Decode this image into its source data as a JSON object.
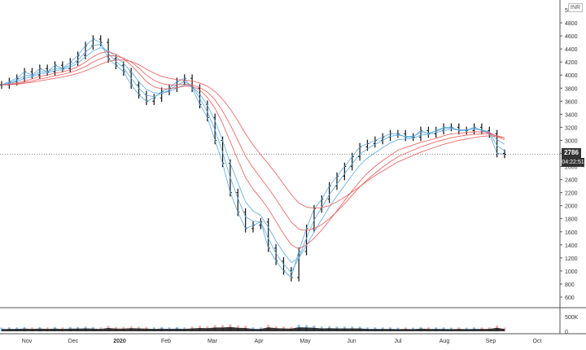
{
  "chart_data": {
    "type": "line",
    "title": "",
    "currency_label": "INR",
    "price_scale": {
      "ylim": [
        600,
        5000
      ],
      "ticks": [
        600,
        800,
        1000,
        1200,
        1400,
        1600,
        1800,
        2000,
        2200,
        2400,
        2600,
        2800,
        3000,
        3200,
        3400,
        3600,
        3800,
        4000,
        4200,
        4400,
        4600,
        4800
      ],
      "top_label": "5000"
    },
    "volume_scale": {
      "ylim": [
        0,
        800000
      ],
      "ticks": [
        0,
        500000
      ],
      "tick_labels": [
        "0",
        "500K"
      ]
    },
    "x_axis": {
      "labels": [
        "Nov",
        "Dec",
        "2020",
        "Feb",
        "Mar",
        "Apr",
        "May",
        "Jun",
        "Jul",
        "Aug",
        "Sep",
        "Oct"
      ],
      "bold": [
        "2020"
      ]
    },
    "last_price": "2786",
    "countdown": "04:22:51",
    "colors": {
      "ribbon_short": "#5aa8e0",
      "ribbon_long": "#e85a5a",
      "bars": "#111111",
      "volume_up": "#7fb3e0",
      "volume_down": "#f0a0a0",
      "volume_area": "#111111"
    },
    "series": [
      {
        "values": [
          3850,
          3900,
          3950,
          4050,
          4000,
          4100,
          4050,
          4150,
          4100,
          4200,
          4300,
          4450,
          4550,
          4500,
          4250,
          4150,
          4050,
          3850,
          3700,
          3600,
          3650,
          3750,
          3800,
          3900,
          3950,
          3800,
          3550,
          3350,
          3000,
          2650,
          2200,
          1900,
          1650,
          1700,
          1750,
          1350,
          1150,
          1000,
          900,
          1300,
          1650,
          1950,
          2100,
          2300,
          2450,
          2600,
          2750,
          2900,
          2950,
          3000,
          3050,
          3100,
          3100,
          3050,
          3050,
          3150,
          3100,
          3150,
          3200,
          3200,
          3150,
          3150,
          3200,
          3150,
          3100,
          2800,
          2786
        ]
      },
      {
        "values": [
          3850,
          3880,
          3920,
          3990,
          3990,
          4050,
          4050,
          4100,
          4100,
          4150,
          4230,
          4350,
          4450,
          4470,
          4330,
          4210,
          4110,
          3950,
          3800,
          3690,
          3670,
          3720,
          3770,
          3850,
          3900,
          3830,
          3640,
          3440,
          3160,
          2820,
          2430,
          2110,
          1830,
          1760,
          1750,
          1500,
          1270,
          1100,
          980,
          1200,
          1500,
          1780,
          1970,
          2170,
          2330,
          2490,
          2640,
          2790,
          2870,
          2940,
          3000,
          3060,
          3080,
          3060,
          3060,
          3120,
          3110,
          3140,
          3180,
          3190,
          3160,
          3160,
          3190,
          3160,
          3120,
          2920,
          2840
        ]
      },
      {
        "values": [
          3850,
          3870,
          3900,
          3950,
          3970,
          4020,
          4030,
          4070,
          4080,
          4120,
          4180,
          4280,
          4370,
          4420,
          4370,
          4280,
          4180,
          4050,
          3900,
          3780,
          3730,
          3720,
          3750,
          3800,
          3850,
          3830,
          3710,
          3540,
          3300,
          3000,
          2650,
          2350,
          2060,
          1920,
          1850,
          1670,
          1460,
          1280,
          1130,
          1200,
          1390,
          1600,
          1790,
          1980,
          2150,
          2310,
          2470,
          2620,
          2730,
          2810,
          2890,
          2960,
          3010,
          3020,
          3030,
          3080,
          3090,
          3120,
          3150,
          3170,
          3160,
          3160,
          3170,
          3160,
          3130,
          3010,
          2940
        ]
      },
      {
        "values": [
          3850,
          3860,
          3880,
          3910,
          3940,
          3980,
          4000,
          4030,
          4050,
          4080,
          4130,
          4200,
          4280,
          4340,
          4360,
          4320,
          4250,
          4150,
          4030,
          3900,
          3820,
          3790,
          3790,
          3810,
          3830,
          3830,
          3770,
          3660,
          3490,
          3260,
          2980,
          2700,
          2430,
          2250,
          2110,
          1950,
          1760,
          1570,
          1400,
          1340,
          1400,
          1500,
          1630,
          1770,
          1920,
          2080,
          2230,
          2370,
          2500,
          2600,
          2690,
          2770,
          2850,
          2890,
          2930,
          2970,
          3000,
          3030,
          3070,
          3100,
          3110,
          3120,
          3130,
          3130,
          3120,
          3060,
          3010
        ]
      },
      {
        "values": [
          3850,
          3855,
          3865,
          3890,
          3910,
          3940,
          3960,
          3990,
          4010,
          4040,
          4080,
          4130,
          4200,
          4250,
          4300,
          4290,
          4260,
          4200,
          4110,
          4000,
          3920,
          3870,
          3850,
          3850,
          3860,
          3850,
          3810,
          3740,
          3620,
          3450,
          3240,
          3000,
          2760,
          2580,
          2420,
          2270,
          2100,
          1920,
          1750,
          1640,
          1620,
          1650,
          1710,
          1800,
          1910,
          2030,
          2160,
          2290,
          2400,
          2500,
          2590,
          2670,
          2750,
          2800,
          2850,
          2900,
          2940,
          2980,
          3010,
          3040,
          3060,
          3080,
          3090,
          3100,
          3100,
          3070,
          3040
        ]
      },
      {
        "values": [
          3850,
          3852,
          3860,
          3875,
          3890,
          3910,
          3930,
          3950,
          3970,
          3995,
          4025,
          4065,
          4115,
          4165,
          4210,
          4230,
          4230,
          4210,
          4160,
          4090,
          4030,
          3980,
          3950,
          3930,
          3920,
          3910,
          3880,
          3830,
          3750,
          3630,
          3480,
          3300,
          3100,
          2930,
          2780,
          2640,
          2490,
          2330,
          2170,
          2040,
          1980,
          1960,
          1970,
          2000,
          2060,
          2130,
          2210,
          2290,
          2380,
          2460,
          2530,
          2600,
          2670,
          2720,
          2770,
          2820,
          2860,
          2900,
          2940,
          2970,
          3000,
          3020,
          3040,
          3060,
          3070,
          3060,
          3040
        ]
      }
    ]
  }
}
